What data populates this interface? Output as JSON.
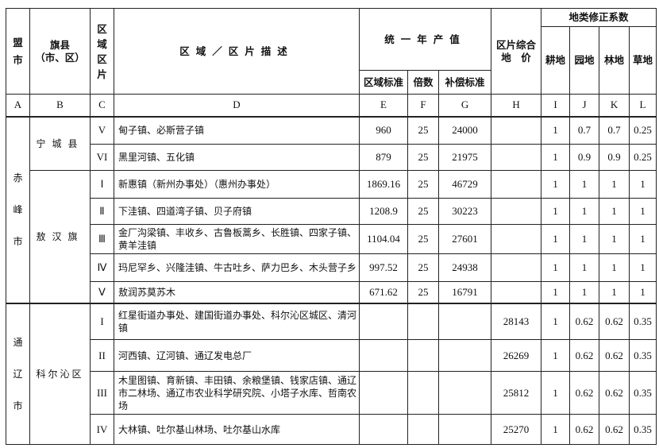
{
  "headers": {
    "league_city": "盟市",
    "county": "旗县",
    "county_sub": "（市、区）",
    "zone": "区域区片",
    "description": "区域／区片描述",
    "annual_output": "统一年产值",
    "zone_standard": "区域标准",
    "multiple": "倍数",
    "compensation": "补偿标准",
    "land_price_l1": "区片综合",
    "land_price_l2": "地　价",
    "correction": "地类修正系数",
    "arable": "耕地",
    "garden": "园地",
    "forest": "林地",
    "grass": "草地"
  },
  "letters": [
    "A",
    "B",
    "C",
    "D",
    "E",
    "F",
    "G",
    "H",
    "I",
    "J",
    "K",
    "L"
  ],
  "groups": [
    {
      "city": "赤峰市",
      "counties": [
        {
          "name": "宁城县",
          "rows": [
            {
              "zone": "V",
              "desc": "甸子镇、必斯营子镇",
              "e": "960",
              "f": "25",
              "g": "24000",
              "h": "",
              "i": "1",
              "j": "0.7",
              "k": "0.7",
              "l": "0.25"
            },
            {
              "zone": "VI",
              "desc": "黑里河镇、五化镇",
              "e": "879",
              "f": "25",
              "g": "21975",
              "h": "",
              "i": "1",
              "j": "0.9",
              "k": "0.9",
              "l": "0.25"
            }
          ]
        },
        {
          "name": "敖汉旗",
          "rows": [
            {
              "zone": "Ⅰ",
              "desc": "新惠镇（新州办事处）（惠州办事处）",
              "e": "1869.16",
              "f": "25",
              "g": "46729",
              "h": "",
              "i": "1",
              "j": "1",
              "k": "1",
              "l": "1"
            },
            {
              "zone": "Ⅱ",
              "desc": "下洼镇、四道湾子镇、贝子府镇",
              "e": "1208.9",
              "f": "25",
              "g": "30223",
              "h": "",
              "i": "1",
              "j": "1",
              "k": "1",
              "l": "1"
            },
            {
              "zone": "Ⅲ",
              "desc": "金厂沟梁镇、丰收乡、古鲁板蒿乡、长胜镇、四家子镇、黄羊洼镇",
              "e": "1104.04",
              "f": "25",
              "g": "27601",
              "h": "",
              "i": "1",
              "j": "1",
              "k": "1",
              "l": "1"
            },
            {
              "zone": "Ⅳ",
              "desc": "玛尼罕乡、兴隆洼镇、牛古吐乡、萨力巴乡、木头营子乡",
              "e": "997.52",
              "f": "25",
              "g": "24938",
              "h": "",
              "i": "1",
              "j": "1",
              "k": "1",
              "l": "1"
            },
            {
              "zone": "Ⅴ",
              "desc": "敖润苏莫苏木",
              "e": "671.62",
              "f": "25",
              "g": "16791",
              "h": "",
              "i": "1",
              "j": "1",
              "k": "1",
              "l": "1"
            }
          ]
        }
      ]
    },
    {
      "city": "通辽市",
      "counties": [
        {
          "name": "科尔沁区",
          "rows": [
            {
              "zone": "I",
              "desc": "红星街道办事处、建国街道办事处、科尔沁区城区、清河镇",
              "e": "",
              "f": "",
              "g": "",
              "h": "28143",
              "i": "1",
              "j": "0.62",
              "k": "0.62",
              "l": "0.35"
            },
            {
              "zone": "II",
              "desc": "河西镇、辽河镇、通辽发电总厂",
              "e": "",
              "f": "",
              "g": "",
              "h": "26269",
              "i": "1",
              "j": "0.62",
              "k": "0.62",
              "l": "0.35"
            },
            {
              "zone": "III",
              "desc": "木里图镇、育新镇、丰田镇、余粮堡镇、钱家店镇、通辽市二林场、通辽市农业科学研究院、小塔子水库、哲南农场",
              "e": "",
              "f": "",
              "g": "",
              "h": "25812",
              "i": "1",
              "j": "0.62",
              "k": "0.62",
              "l": "0.35"
            },
            {
              "zone": "IV",
              "desc": "大林镇、吐尔基山林场、吐尔基山水库",
              "e": "",
              "f": "",
              "g": "",
              "h": "25270",
              "i": "1",
              "j": "0.62",
              "k": "0.62",
              "l": "0.35"
            }
          ]
        }
      ]
    }
  ]
}
